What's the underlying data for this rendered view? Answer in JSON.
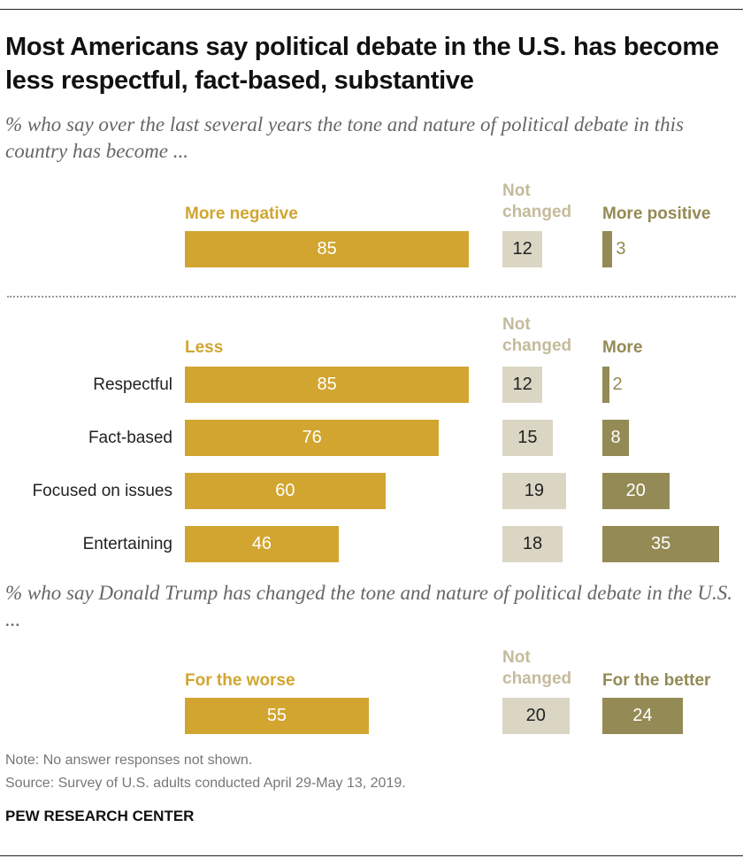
{
  "title": "Most Americans say political debate in the U.S. has become less respectful, fact-based, substantive",
  "colors": {
    "negative": "#D1A530",
    "neutral": "#DAD6C3",
    "positive": "#948A55",
    "neutral_label": "#C4BB9C"
  },
  "chart_data": [
    {
      "type": "bar",
      "subtitle": "% who say over the last several years the tone and nature of political debate in this country has become ...",
      "series_labels": [
        "More negative",
        "Not changed",
        "More positive"
      ],
      "categories": [
        ""
      ],
      "series": [
        {
          "name": "More negative",
          "values": [
            85
          ]
        },
        {
          "name": "Not changed",
          "values": [
            12
          ]
        },
        {
          "name": "More positive",
          "values": [
            3
          ]
        }
      ]
    },
    {
      "type": "bar",
      "series_labels": [
        "Less",
        "Not changed",
        "More"
      ],
      "categories": [
        "Respectful",
        "Fact-based",
        "Focused on issues",
        "Entertaining"
      ],
      "series": [
        {
          "name": "Less",
          "values": [
            85,
            76,
            60,
            46
          ]
        },
        {
          "name": "Not changed",
          "values": [
            12,
            15,
            19,
            18
          ]
        },
        {
          "name": "More",
          "values": [
            2,
            8,
            20,
            35
          ]
        }
      ]
    },
    {
      "type": "bar",
      "subtitle": "% who say Donald Trump has changed the tone and nature of political debate in the U.S. ...",
      "series_labels": [
        "For the worse",
        "Not changed",
        "For the better"
      ],
      "categories": [
        ""
      ],
      "series": [
        {
          "name": "For the worse",
          "values": [
            55
          ]
        },
        {
          "name": "Not changed",
          "values": [
            20
          ]
        },
        {
          "name": "For the better",
          "values": [
            24
          ]
        }
      ]
    }
  ],
  "note": "Note: No answer responses not shown.",
  "source": "Source: Survey of U.S. adults conducted April 29-May 13, 2019.",
  "brand": "PEW RESEARCH CENTER"
}
